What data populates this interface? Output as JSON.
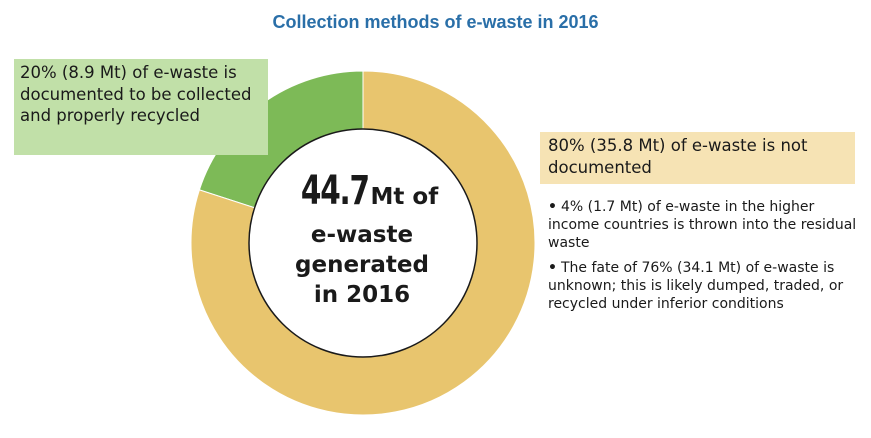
{
  "chart_data": {
    "type": "pie",
    "style": "donut",
    "title": "Collection methods of e-waste in 2016",
    "slices": [
      {
        "name": "20% (8.9 Mt) of e-waste is documented to be collected and properly recycled",
        "value": 20,
        "amount_mt": 8.9,
        "color": "#7dba57"
      },
      {
        "name": "80% (35.8 Mt) of e-waste is not documented",
        "value": 80,
        "amount_mt": 35.8,
        "color": "#e8c56e"
      }
    ],
    "total": {
      "value": "44.7",
      "unit": "Mt of",
      "line2": "e-waste",
      "line3": "generated",
      "line4": "in 2016"
    },
    "annotations": {
      "documented": "20% (8.9 Mt) of e-waste is documented to be collected and properly recycled",
      "not_documented": "80% (35.8 Mt) of e-waste is not documented",
      "bullets": [
        "4% (1.7 Mt) of e-waste in the higher income countries is thrown into the residual waste",
        "The fate of 76% (34.1 Mt) of e-waste is unknown; this is likely dumped, traded, or recycled under inferior conditions"
      ]
    },
    "colors": {
      "title": "#2a6fa8",
      "green_slice": "#7dba57",
      "yellow_slice": "#e8c56e",
      "green_label_bg": "#c1e0a8",
      "yellow_label_bg": "#f6e3b4"
    }
  }
}
